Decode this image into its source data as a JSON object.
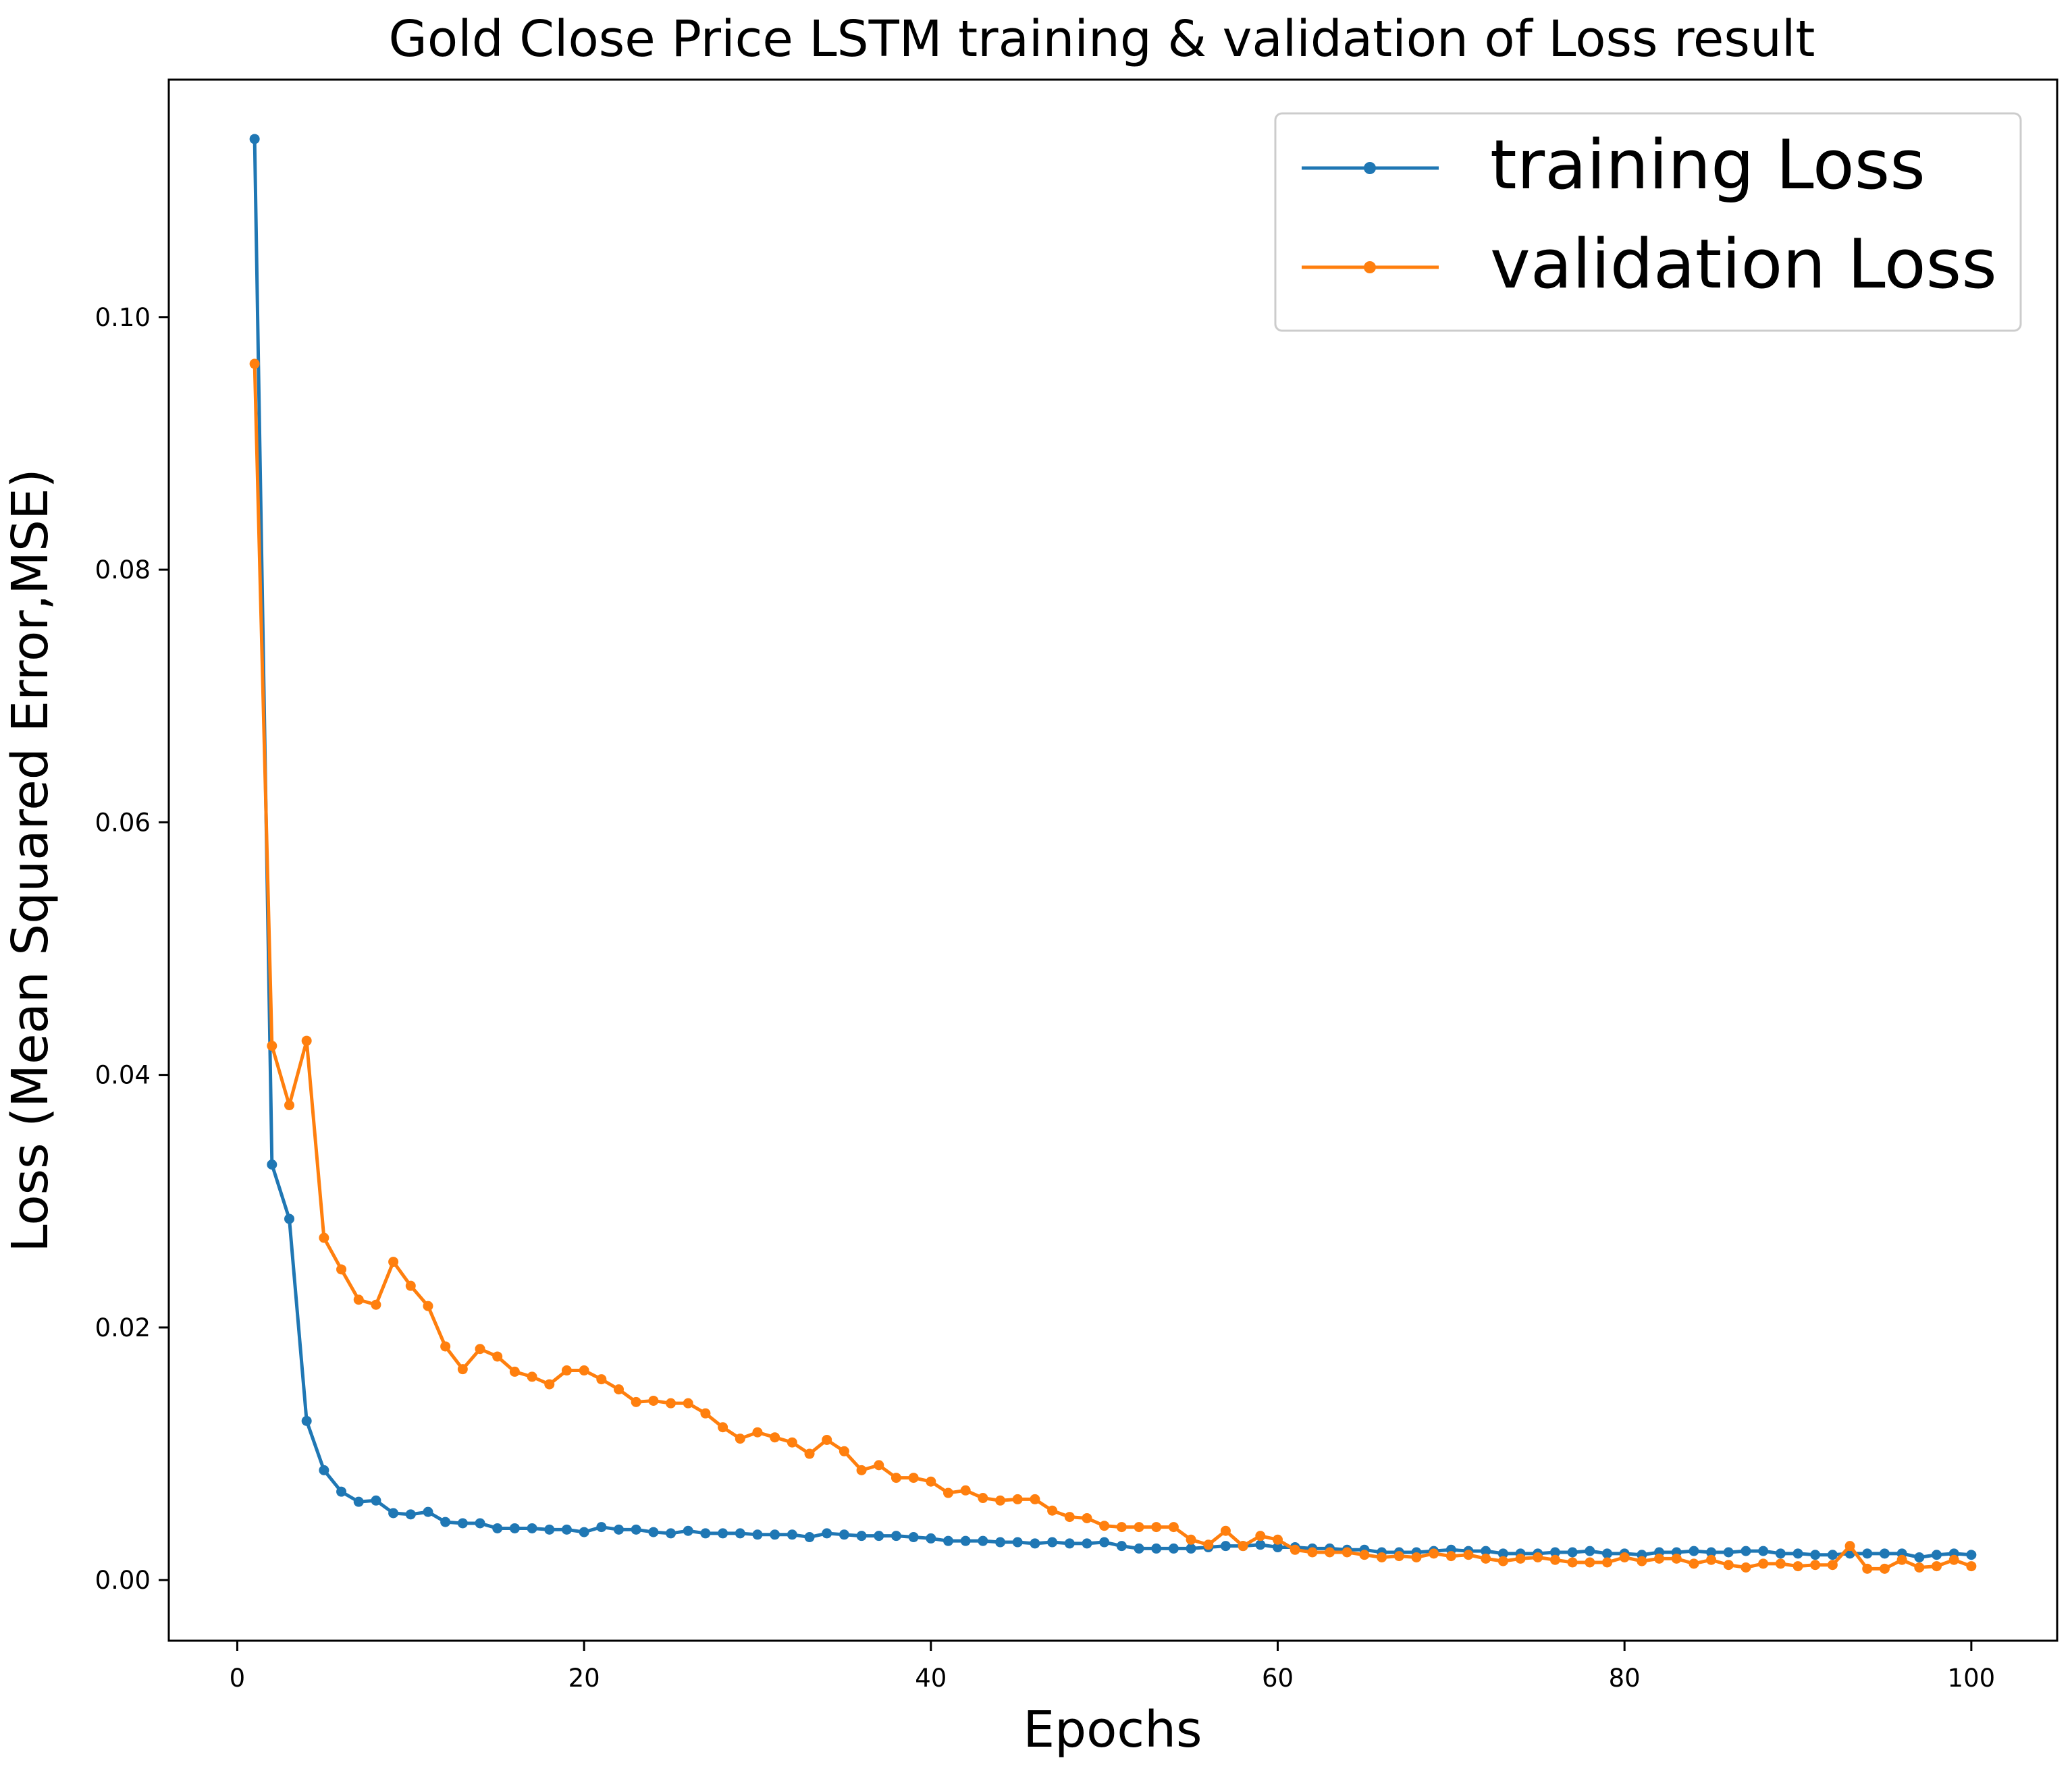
{
  "chart_data": {
    "type": "line",
    "title": "Gold Close Price LSTM training & validation of Loss result",
    "xlabel": "Epochs",
    "ylabel": "Loss (Mean Squared Error,MSE)",
    "xlim": [
      -3.95,
      104.95
    ],
    "ylim": [
      -0.0048,
      0.1188
    ],
    "xticks": [
      0,
      20,
      40,
      60,
      80,
      100
    ],
    "xtick_labels": [
      "0",
      "20",
      "40",
      "60",
      "80",
      "100"
    ],
    "yticks": [
      0.0,
      0.02,
      0.04,
      0.06,
      0.08,
      0.1
    ],
    "ytick_labels": [
      "0.00",
      "0.02",
      "0.04",
      "0.06",
      "0.08",
      "0.10"
    ],
    "grid": false,
    "legend_position": "upper right",
    "x": [
      1,
      2,
      3,
      4,
      5,
      6,
      7,
      8,
      9,
      10,
      11,
      12,
      13,
      14,
      15,
      16,
      17,
      18,
      19,
      20,
      21,
      22,
      23,
      24,
      25,
      26,
      27,
      28,
      29,
      30,
      31,
      32,
      33,
      34,
      35,
      36,
      37,
      38,
      39,
      40,
      41,
      42,
      43,
      44,
      45,
      46,
      47,
      48,
      49,
      50,
      51,
      52,
      53,
      54,
      55,
      56,
      57,
      58,
      59,
      60,
      61,
      62,
      63,
      64,
      65,
      66,
      67,
      68,
      69,
      70,
      71,
      72,
      73,
      74,
      75,
      76,
      77,
      78,
      79,
      80,
      81,
      82,
      83,
      84,
      85,
      86,
      87,
      88,
      89,
      90,
      91,
      92,
      93,
      94,
      95,
      96,
      97,
      98,
      99,
      100
    ],
    "series": [
      {
        "name": "training Loss",
        "color": "#1f77b4",
        "marker": "circle",
        "values": [
          0.1141,
          0.0329,
          0.0286,
          0.0126,
          0.0087,
          0.007,
          0.0062,
          0.0063,
          0.0053,
          0.0052,
          0.0054,
          0.0046,
          0.0045,
          0.0045,
          0.0041,
          0.0041,
          0.0041,
          0.004,
          0.004,
          0.0038,
          0.0042,
          0.004,
          0.004,
          0.0038,
          0.0037,
          0.0039,
          0.0037,
          0.0037,
          0.0037,
          0.0036,
          0.0036,
          0.0036,
          0.0034,
          0.0037,
          0.0036,
          0.0035,
          0.0035,
          0.0035,
          0.0034,
          0.0033,
          0.0031,
          0.0031,
          0.0031,
          0.003,
          0.003,
          0.0029,
          0.003,
          0.0029,
          0.0029,
          0.003,
          0.0027,
          0.0025,
          0.0025,
          0.0025,
          0.0025,
          0.0026,
          0.0027,
          0.0027,
          0.0028,
          0.0026,
          0.0026,
          0.0025,
          0.0025,
          0.0024,
          0.0024,
          0.0022,
          0.0022,
          0.0022,
          0.0023,
          0.0024,
          0.0023,
          0.0023,
          0.0021,
          0.0021,
          0.0021,
          0.0022,
          0.0022,
          0.0023,
          0.0021,
          0.0021,
          0.002,
          0.0022,
          0.0022,
          0.0023,
          0.0022,
          0.0022,
          0.0023,
          0.0023,
          0.0021,
          0.0021,
          0.002,
          0.002,
          0.0021,
          0.0021,
          0.0021,
          0.0021,
          0.0018,
          0.002,
          0.0021,
          0.002
        ]
      },
      {
        "name": "validation Loss",
        "color": "#ff7f0e",
        "marker": "circle",
        "values": [
          0.0963,
          0.0423,
          0.0376,
          0.0427,
          0.0271,
          0.0246,
          0.0222,
          0.0218,
          0.0252,
          0.0233,
          0.0217,
          0.0185,
          0.0167,
          0.0183,
          0.0177,
          0.0165,
          0.0161,
          0.0155,
          0.0166,
          0.0166,
          0.0159,
          0.0151,
          0.0141,
          0.0142,
          0.014,
          0.014,
          0.0132,
          0.0121,
          0.0112,
          0.0117,
          0.0113,
          0.0109,
          0.01,
          0.0111,
          0.0102,
          0.0087,
          0.0091,
          0.0081,
          0.0081,
          0.0078,
          0.0069,
          0.0071,
          0.0065,
          0.0063,
          0.0064,
          0.0064,
          0.0055,
          0.005,
          0.0049,
          0.0043,
          0.0042,
          0.0042,
          0.0042,
          0.0042,
          0.0032,
          0.0028,
          0.0039,
          0.0027,
          0.0035,
          0.0032,
          0.0024,
          0.0022,
          0.0022,
          0.0022,
          0.002,
          0.0018,
          0.0019,
          0.0018,
          0.0021,
          0.0019,
          0.002,
          0.0017,
          0.0015,
          0.0017,
          0.0018,
          0.0016,
          0.0014,
          0.0014,
          0.0014,
          0.0018,
          0.0015,
          0.0017,
          0.0017,
          0.0013,
          0.0016,
          0.0012,
          0.001,
          0.0013,
          0.0013,
          0.0011,
          0.0012,
          0.0012,
          0.0027,
          0.0009,
          0.0009,
          0.0016,
          0.001,
          0.0011,
          0.0016,
          0.0011
        ]
      }
    ]
  }
}
